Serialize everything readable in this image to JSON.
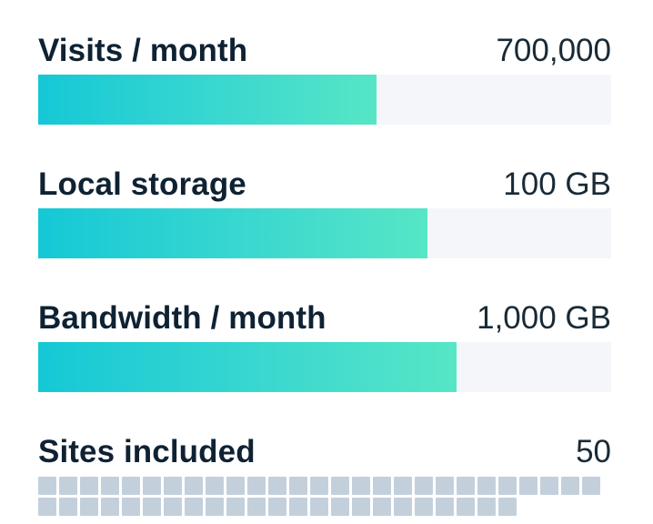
{
  "metrics": [
    {
      "label": "Visits / month",
      "value": "700,000",
      "fill_fraction": 0.59
    },
    {
      "label": "Local storage",
      "value": "100 GB",
      "fill_fraction": 0.68
    },
    {
      "label": "Bandwidth / month",
      "value": "1,000 GB",
      "fill_fraction": 0.73
    }
  ],
  "sites": {
    "label": "Sites included",
    "value": "50",
    "count": 50
  },
  "colors": {
    "bar_start": "#15c8d6",
    "bar_end": "#56e6c6",
    "track": "#f4f6fa",
    "square": "#c3d0dc",
    "text": "#0f2233"
  }
}
